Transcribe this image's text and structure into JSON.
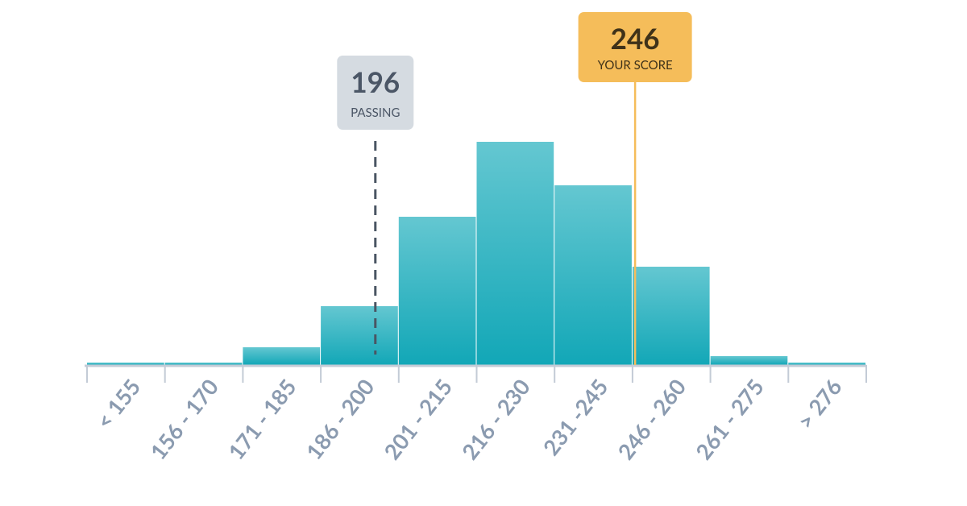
{
  "chart_data": {
    "type": "bar",
    "categories": [
      "< 155",
      "156 - 170",
      "171 - 185",
      "186 - 200",
      "201 - 215",
      "216 - 230",
      "231 -245",
      "246 - 260",
      "261 - 275",
      "> 276"
    ],
    "values": [
      3,
      3,
      22,
      73,
      184,
      277,
      223,
      122,
      11,
      3
    ],
    "color": "#14a8b8",
    "markers": [
      {
        "value": 196,
        "label": "PASSING",
        "color": "#d5dbe1",
        "style": "dashed"
      },
      {
        "value": 246,
        "label": "YOUR SCORE",
        "color": "#f5bd5a",
        "style": "solid"
      }
    ]
  }
}
